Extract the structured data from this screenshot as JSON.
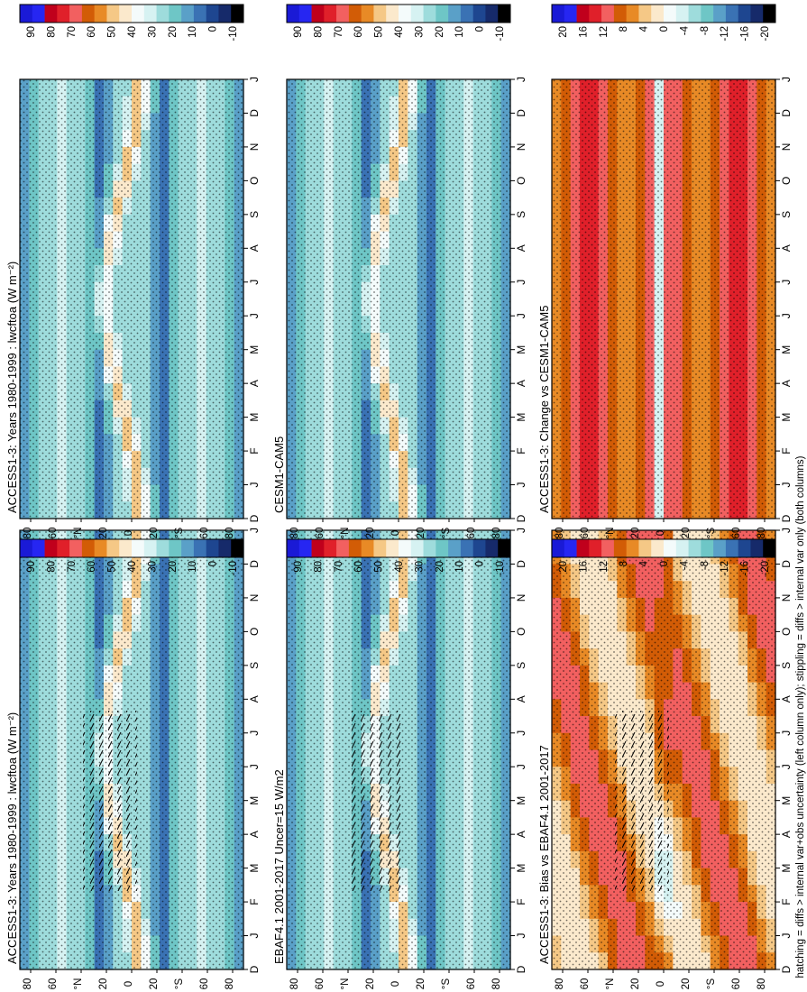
{
  "figure": {
    "footer": "hatching = diffs > internal var+obs uncertainty (left column only); stippling = diffs > internal var only (both columns)",
    "months": [
      "D",
      "J",
      "F",
      "M",
      "A",
      "M",
      "J",
      "J",
      "A",
      "S",
      "O",
      "N",
      "D",
      "J"
    ],
    "lat_ticks": [
      "80",
      "60",
      "°N",
      "20",
      "0",
      "20",
      "°S",
      "60",
      "80"
    ]
  },
  "colorbars": {
    "absolute": {
      "labels": [
        "90",
        "80",
        "70",
        "60",
        "50",
        "40",
        "30",
        "20",
        "10",
        "0",
        "-10"
      ],
      "colors": [
        "#1a1ad6",
        "#2626f2",
        "#c0001c",
        "#e0202a",
        "#f26060",
        "#d25c06",
        "#e88a26",
        "#f5c886",
        "#fbe9cc",
        "#f4fbfb",
        "#d6f2f2",
        "#9edcdc",
        "#6ec6c6",
        "#5aa0c8",
        "#3a72b4",
        "#1e4690",
        "#162a6a",
        "#000000"
      ]
    },
    "difference": {
      "labels": [
        "20",
        "16",
        "12",
        "8",
        "4",
        "0",
        "-4",
        "-8",
        "-12",
        "-16",
        "-20"
      ],
      "colors": [
        "#1a1ad6",
        "#2626f2",
        "#c0001c",
        "#e0202a",
        "#f26060",
        "#d25c06",
        "#e88a26",
        "#f5c886",
        "#fbe9cc",
        "#f4fbfb",
        "#d6f2f2",
        "#9edcdc",
        "#6ec6c6",
        "#5aa0c8",
        "#3a72b4",
        "#1e4690",
        "#162a6a",
        "#000000"
      ]
    }
  },
  "chart_data": [
    {
      "type": "heatmap",
      "title": "ACCESS1-3: Years 1980-1999 : lwcftoa (W m⁻²)",
      "scale": "absolute",
      "hatching": true,
      "x": "month",
      "y": "latitude",
      "ylim": [
        -90,
        90
      ]
    },
    {
      "type": "heatmap",
      "title": "ACCESS1-3: Years 1980-1999 : lwcftoa (W m⁻²)",
      "scale": "absolute",
      "hatching": false,
      "x": "month",
      "y": "latitude",
      "ylim": [
        -90,
        90
      ]
    },
    {
      "type": "heatmap",
      "title": "EBAF4.1 2001-2017 Uncer=15 W/m2",
      "scale": "absolute",
      "hatching": true,
      "x": "month",
      "y": "latitude",
      "ylim": [
        -90,
        90
      ]
    },
    {
      "type": "heatmap",
      "title": "CESM1-CAM5",
      "scale": "absolute",
      "hatching": false,
      "x": "month",
      "y": "latitude",
      "ylim": [
        -90,
        90
      ]
    },
    {
      "type": "heatmap",
      "title": "ACCESS1-3: Bias vs EBAF4.1 2001-2017",
      "scale": "difference",
      "hatching": true,
      "x": "month",
      "y": "latitude",
      "ylim": [
        -90,
        90
      ]
    },
    {
      "type": "heatmap",
      "title": "ACCESS1-3: Change vs CESM1-CAM5",
      "scale": "difference",
      "hatching": false,
      "x": "month",
      "y": "latitude",
      "ylim": [
        -90,
        90
      ]
    }
  ]
}
